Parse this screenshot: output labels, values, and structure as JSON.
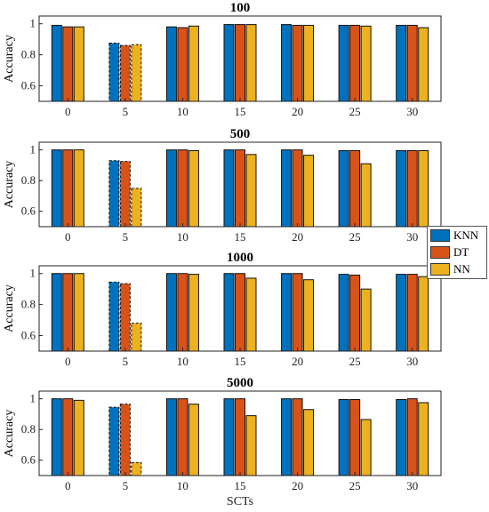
{
  "chart_data": [
    {
      "type": "bar",
      "title": "100",
      "ylabel": "Accuracy",
      "xlabel": "",
      "categories": [
        "0",
        "5",
        "10",
        "15",
        "20",
        "25",
        "30"
      ],
      "ylim": [
        0.5,
        1.05
      ],
      "yticks": [
        "0.6",
        "0.8",
        "1"
      ],
      "dashed_category": "5",
      "series": [
        {
          "name": "KNN",
          "color": "#0072BD",
          "values": [
            0.99,
            0.875,
            0.98,
            0.995,
            0.995,
            0.99,
            0.99
          ]
        },
        {
          "name": "DT",
          "color": "#D95319",
          "values": [
            0.98,
            0.86,
            0.975,
            0.995,
            0.99,
            0.99,
            0.99
          ]
        },
        {
          "name": "NN",
          "color": "#EDB120",
          "values": [
            0.98,
            0.865,
            0.985,
            0.995,
            0.99,
            0.985,
            0.975
          ]
        }
      ]
    },
    {
      "type": "bar",
      "title": "500",
      "ylabel": "Accuracy",
      "xlabel": "",
      "categories": [
        "0",
        "5",
        "10",
        "15",
        "20",
        "25",
        "30"
      ],
      "ylim": [
        0.5,
        1.05
      ],
      "yticks": [
        "0.6",
        "0.8",
        "1"
      ],
      "dashed_category": "5",
      "series": [
        {
          "name": "KNN",
          "color": "#0072BD",
          "values": [
            1.0,
            0.93,
            1.0,
            1.0,
            1.0,
            0.995,
            0.995
          ]
        },
        {
          "name": "DT",
          "color": "#D95319",
          "values": [
            1.0,
            0.925,
            1.0,
            1.0,
            1.0,
            0.995,
            0.995
          ]
        },
        {
          "name": "NN",
          "color": "#EDB120",
          "values": [
            1.0,
            0.75,
            0.995,
            0.97,
            0.965,
            0.91,
            0.995
          ]
        }
      ]
    },
    {
      "type": "bar",
      "title": "1000",
      "ylabel": "Accuracy",
      "xlabel": "",
      "categories": [
        "0",
        "5",
        "10",
        "15",
        "20",
        "25",
        "30"
      ],
      "ylim": [
        0.5,
        1.05
      ],
      "yticks": [
        "0.6",
        "0.8",
        "1"
      ],
      "dashed_category": "5",
      "series": [
        {
          "name": "KNN",
          "color": "#0072BD",
          "values": [
            1.0,
            0.945,
            1.0,
            1.0,
            1.0,
            0.995,
            0.995
          ]
        },
        {
          "name": "DT",
          "color": "#D95319",
          "values": [
            1.0,
            0.935,
            1.0,
            1.0,
            1.0,
            0.99,
            0.995
          ]
        },
        {
          "name": "NN",
          "color": "#EDB120",
          "values": [
            1.0,
            0.68,
            0.995,
            0.97,
            0.96,
            0.9,
            0.98
          ]
        }
      ]
    },
    {
      "type": "bar",
      "title": "5000",
      "ylabel": "Accuracy",
      "xlabel": "SCTs",
      "categories": [
        "0",
        "5",
        "10",
        "15",
        "20",
        "25",
        "30"
      ],
      "ylim": [
        0.5,
        1.05
      ],
      "yticks": [
        "0.6",
        "0.8",
        "1"
      ],
      "dashed_category": "5",
      "series": [
        {
          "name": "KNN",
          "color": "#0072BD",
          "values": [
            1.0,
            0.945,
            1.0,
            1.0,
            1.0,
            0.995,
            0.995
          ]
        },
        {
          "name": "DT",
          "color": "#D95319",
          "values": [
            1.0,
            0.965,
            1.0,
            1.0,
            1.0,
            0.995,
            1.0
          ]
        },
        {
          "name": "NN",
          "color": "#EDB120",
          "values": [
            0.99,
            0.585,
            0.965,
            0.89,
            0.93,
            0.865,
            0.975
          ]
        }
      ]
    }
  ],
  "legend": {
    "placement": "right",
    "items": [
      {
        "label": "KNN",
        "color": "#0072BD"
      },
      {
        "label": "DT",
        "color": "#D95319"
      },
      {
        "label": "NN",
        "color": "#EDB120"
      }
    ]
  }
}
